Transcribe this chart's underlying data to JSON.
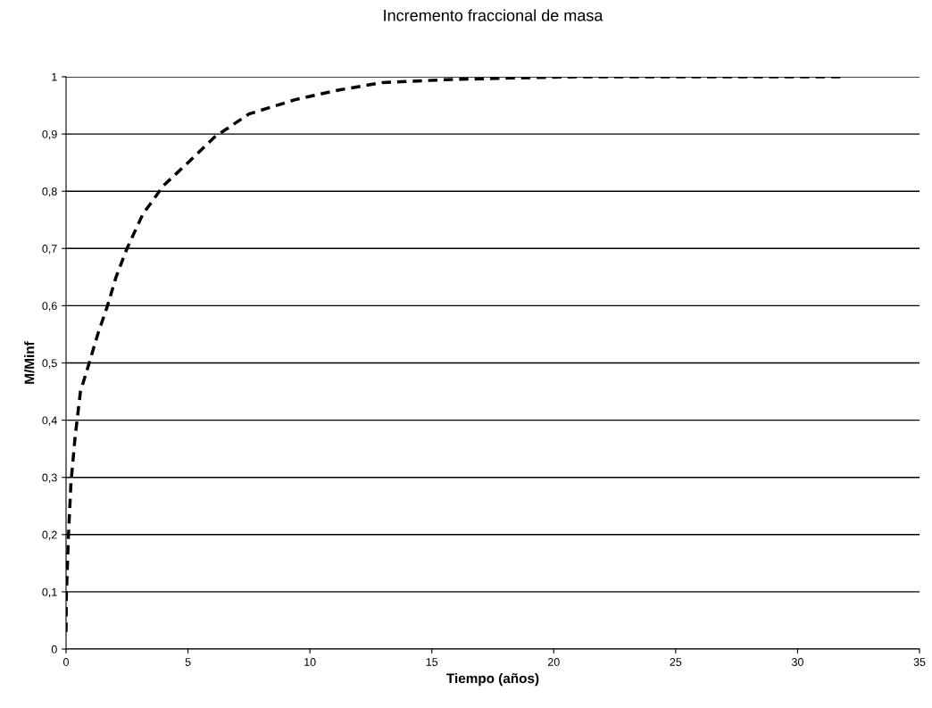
{
  "chart_data": {
    "type": "line",
    "title": "Incremento fraccional de masa",
    "xlabel": "Tiempo (años)",
    "ylabel": "M/Minf",
    "x": [
      0,
      0.01,
      0.1,
      0.2,
      0.37,
      0.59,
      0.95,
      1.3,
      1.7,
      2.05,
      2.5,
      3.15,
      4,
      5,
      6.1,
      7.5,
      9.4,
      11.2,
      13,
      15.6,
      18.5,
      21.1,
      32
    ],
    "series": [
      {
        "color": "#000000",
        "values": [
          0.03,
          0.09,
          0.2,
          0.29,
          0.37,
          0.45,
          0.5,
          0.55,
          0.6,
          0.65,
          0.7,
          0.76,
          0.81,
          0.85,
          0.895,
          0.935,
          0.96,
          0.977,
          0.99,
          0.995,
          0.998,
          1,
          1
        ]
      }
    ],
    "xlim": [
      0,
      35
    ],
    "xticks": [
      0,
      5,
      10,
      15,
      20,
      25,
      30,
      35
    ],
    "ylim": [
      0,
      1
    ],
    "yticks": [
      {
        "value": 0,
        "label": "0"
      },
      {
        "value": 0.1,
        "label": "0,1"
      },
      {
        "value": 0.2,
        "label": "0,2"
      },
      {
        "value": 0.3,
        "label": "0,3"
      },
      {
        "value": 0.4,
        "label": "0,4"
      },
      {
        "value": 0.5,
        "label": "0,5"
      },
      {
        "value": 0.6,
        "label": "0,6"
      },
      {
        "value": 0.7,
        "label": "0,7"
      },
      {
        "value": 0.8,
        "label": "0,8"
      },
      {
        "value": 0.9,
        "label": "0,9"
      },
      {
        "value": 1,
        "label": "1"
      }
    ],
    "grid": "y",
    "line_style": "dashed",
    "marker": "none"
  }
}
